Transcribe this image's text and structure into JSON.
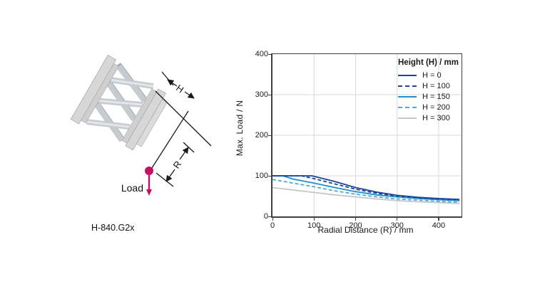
{
  "diagram": {
    "caption": "H-840.G2x",
    "load_label": "Load",
    "height_dim_label": "H",
    "radius_dim_label": "R",
    "load_color": "#c60f5f",
    "hexapod_body_color": "#d7d7d7",
    "hexapod_strut_color": "#c7cbcf"
  },
  "chart_data": {
    "type": "line",
    "title": "",
    "xlabel": "Radial Distance (R) / mm",
    "ylabel": "Max. Load / N",
    "xlim": [
      0,
      455
    ],
    "ylim": [
      0,
      400
    ],
    "x_ticks": [
      0,
      100,
      200,
      300,
      400
    ],
    "y_ticks": [
      0,
      100,
      200,
      300,
      400
    ],
    "x_gridlines": [
      100,
      200,
      300,
      400
    ],
    "y_gridlines": [
      100,
      200,
      300
    ],
    "grid": true,
    "gridline_color": "#d9d9d9",
    "legend_title": "Height (H) / mm",
    "legend_position": "top-right",
    "series": [
      {
        "name": "H = 0",
        "color": "#1c4499",
        "dash": "solid",
        "x": [
          0,
          70,
          95,
          150,
          200,
          250,
          300,
          350,
          400,
          450
        ],
        "y": [
          100,
          100,
          100,
          86,
          71,
          60,
          52,
          47,
          44,
          42
        ]
      },
      {
        "name": "H = 100",
        "color": "#1c4499",
        "dash": "dashed",
        "x": [
          0,
          70,
          100,
          150,
          200,
          250,
          300,
          350,
          400,
          450
        ],
        "y": [
          100,
          100,
          93,
          80,
          67,
          57,
          50,
          46,
          43,
          41
        ]
      },
      {
        "name": "H = 150",
        "color": "#1f8fcc",
        "dash": "solid",
        "x": [
          0,
          25,
          50,
          100,
          150,
          200,
          250,
          300,
          350,
          400,
          450
        ],
        "y": [
          100,
          100,
          92,
          82,
          71,
          61,
          53,
          48,
          44,
          41,
          39
        ]
      },
      {
        "name": "H = 200",
        "color": "#4fa8da",
        "dash": "dashed",
        "x": [
          0,
          50,
          100,
          150,
          200,
          250,
          300,
          350,
          400,
          450
        ],
        "y": [
          91,
          82,
          73,
          63,
          55,
          48,
          43,
          40,
          37,
          35
        ]
      },
      {
        "name": "H = 300",
        "color": "#c3c7cb",
        "dash": "solid",
        "x": [
          0,
          50,
          100,
          150,
          200,
          250,
          300,
          350,
          400,
          450
        ],
        "y": [
          71,
          65,
          59,
          53,
          48,
          43,
          39,
          36,
          34,
          32
        ]
      }
    ]
  }
}
